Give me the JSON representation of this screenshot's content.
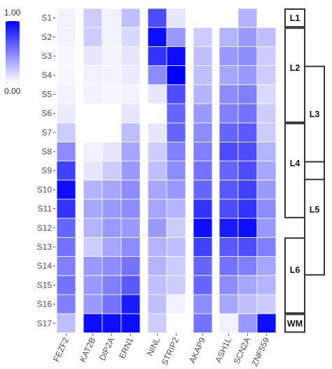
{
  "chart_data": {
    "type": "heatmap",
    "legend": {
      "max_label": "1.00",
      "min_label": "0.00",
      "range": [
        0,
        1
      ],
      "color_low": "#ffffff",
      "color_high": "#0000ff"
    },
    "rows": [
      "S1",
      "S2",
      "S3",
      "S4",
      "S5",
      "S6",
      "S7",
      "S8",
      "S9",
      "S10",
      "S11",
      "S12",
      "S13",
      "S14",
      "S15",
      "S16",
      "S17"
    ],
    "columns": [
      "FEZF2",
      "KAT2B",
      "DIP2A",
      "ERN1",
      "NINL",
      "STRIP2",
      "AKAP9",
      "ASH1L",
      "SCN2A",
      "ZNF559"
    ],
    "column_groups": [
      [
        0
      ],
      [
        1,
        2,
        3
      ],
      [
        4,
        5
      ],
      [
        6
      ],
      [
        7,
        8,
        9
      ]
    ],
    "values": [
      [
        0.05,
        0.2,
        0.05,
        0.25,
        0.7,
        0.1,
        null,
        null,
        0.3,
        null
      ],
      [
        0.05,
        0.2,
        0.05,
        0.15,
        0.95,
        0.4,
        0.2,
        0.3,
        0.4,
        0.25
      ],
      [
        0.03,
        0.1,
        0.05,
        0.1,
        0.8,
        0.95,
        0.25,
        0.4,
        0.45,
        0.2
      ],
      [
        0.03,
        0.05,
        0.05,
        0.08,
        0.45,
        1.0,
        0.25,
        0.35,
        0.4,
        0.2
      ],
      [
        0.05,
        0.05,
        0.03,
        0.05,
        0.1,
        0.7,
        0.3,
        0.45,
        0.5,
        0.15
      ],
      [
        0.08,
        0.0,
        0.0,
        0.1,
        0.0,
        0.6,
        0.4,
        0.5,
        0.55,
        0.2
      ],
      [
        0.2,
        0.0,
        0.0,
        0.25,
        0.1,
        0.6,
        0.45,
        0.6,
        0.65,
        0.2
      ],
      [
        0.45,
        0.05,
        0.1,
        0.35,
        0.2,
        0.5,
        0.5,
        0.7,
        0.7,
        0.3
      ],
      [
        0.75,
        0.1,
        0.2,
        0.4,
        0.25,
        0.45,
        0.55,
        0.6,
        0.7,
        0.35
      ],
      [
        0.95,
        0.3,
        0.35,
        0.45,
        0.35,
        0.4,
        0.6,
        0.65,
        0.75,
        0.4
      ],
      [
        0.8,
        0.35,
        0.4,
        0.45,
        0.35,
        0.3,
        0.8,
        0.7,
        0.8,
        0.45
      ],
      [
        0.6,
        0.3,
        0.4,
        0.4,
        0.4,
        0.2,
        0.95,
        0.9,
        0.95,
        0.4
      ],
      [
        0.55,
        0.2,
        0.35,
        0.45,
        0.3,
        0.25,
        0.75,
        0.65,
        0.7,
        0.5
      ],
      [
        0.5,
        0.4,
        0.45,
        0.55,
        0.3,
        0.2,
        0.6,
        0.55,
        0.5,
        0.35
      ],
      [
        0.55,
        0.4,
        0.5,
        0.65,
        0.25,
        0.2,
        0.6,
        0.45,
        0.35,
        0.3
      ],
      [
        0.5,
        0.4,
        0.55,
        0.9,
        0.25,
        0.05,
        0.45,
        0.35,
        0.25,
        0.2
      ],
      [
        0.25,
        0.95,
        0.95,
        0.95,
        0.2,
        0.0,
        0.55,
        0.05,
        0.4,
        0.95
      ]
    ],
    "layers": [
      {
        "label": "L1",
        "rows": [
          1,
          1
        ]
      },
      {
        "label": "L2",
        "rows": [
          2,
          6
        ]
      },
      {
        "label": "L3",
        "rows": [
          4,
          9
        ]
      },
      {
        "label": "L4",
        "rows": [
          7,
          11
        ]
      },
      {
        "label": "L5",
        "rows": [
          9,
          14
        ]
      },
      {
        "label": "L6",
        "rows": [
          13,
          16
        ]
      },
      {
        "label": "WM",
        "rows": [
          17,
          17
        ]
      }
    ]
  }
}
